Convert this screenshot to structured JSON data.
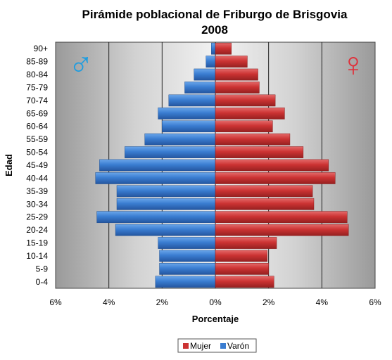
{
  "chart_data": {
    "type": "bar",
    "orientation": "horizontal",
    "title_line1": "Pirámide poblacional de Friburgo de Brisgovia",
    "title_line2": "2008",
    "xlabel": "Porcentaje",
    "ylabel": "Edad",
    "categories": [
      "0-4",
      "5-9",
      "10-14",
      "15-19",
      "20-24",
      "25-29",
      "30-34",
      "35-39",
      "40-44",
      "45-49",
      "50-54",
      "55-59",
      "60-64",
      "65-69",
      "70-74",
      "75-79",
      "80-84",
      "85-89",
      "90+"
    ],
    "series": [
      {
        "name": "Mujer",
        "color": "#cc3333",
        "values": [
          2.2,
          2.0,
          1.95,
          2.3,
          5.0,
          4.95,
          3.7,
          3.65,
          4.5,
          4.25,
          3.3,
          2.8,
          2.15,
          2.6,
          2.25,
          1.65,
          1.6,
          1.2,
          0.6
        ]
      },
      {
        "name": "Varón",
        "color": "#3a7dd1",
        "values": [
          2.25,
          2.1,
          2.1,
          2.15,
          3.75,
          4.45,
          3.7,
          3.7,
          4.5,
          4.35,
          3.4,
          2.65,
          2.0,
          2.15,
          1.75,
          1.15,
          0.8,
          0.35,
          0.15
        ]
      }
    ],
    "xticks": [
      "6%",
      "4%",
      "2%",
      "0%",
      "2%",
      "4%",
      "6%"
    ],
    "xlim": [
      -6,
      6
    ],
    "grid": true,
    "legend_position": "bottom",
    "legend": [
      "Mujer",
      "Varón"
    ],
    "male_symbol": "♂",
    "female_symbol": "♀"
  }
}
